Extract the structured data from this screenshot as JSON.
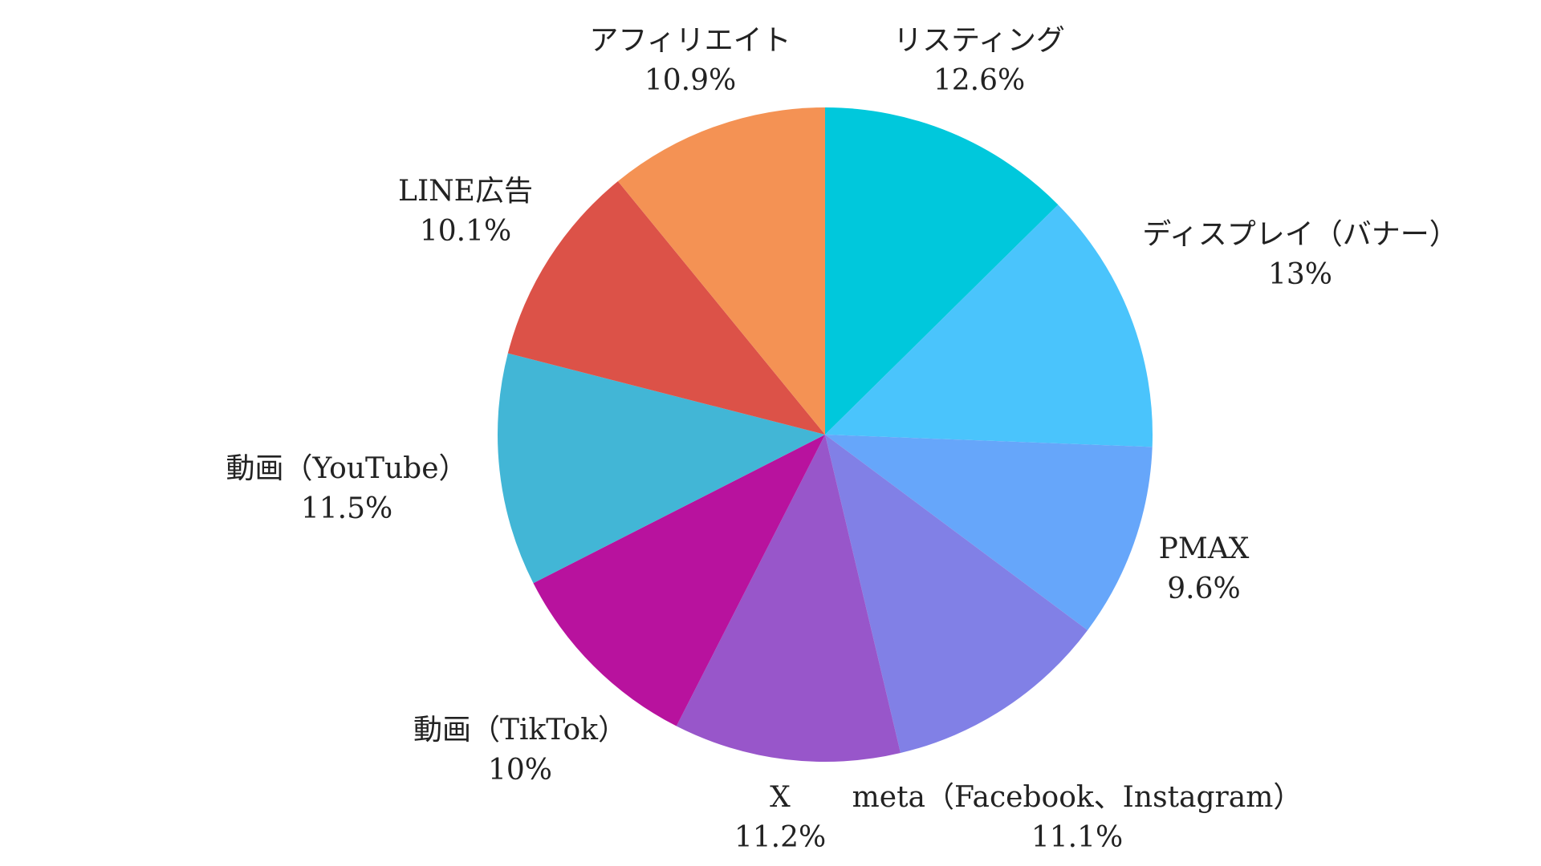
{
  "chart_data": {
    "type": "pie",
    "title": "",
    "slices": [
      {
        "label": "リスティング",
        "value": 12.6,
        "display": "12.6%",
        "color": "#00C8DC"
      },
      {
        "label": "ディスプレイ（バナー）",
        "value": 13,
        "display": "13%",
        "color": "#4AC4FC"
      },
      {
        "label": "PMAX",
        "value": 9.6,
        "display": "9.6%",
        "color": "#66A6FA"
      },
      {
        "label": "meta（Facebook、Instagram）",
        "value": 11.1,
        "display": "11.1%",
        "color": "#8180E6"
      },
      {
        "label": "X",
        "value": 11.2,
        "display": "11.2%",
        "color": "#9856CA"
      },
      {
        "label": "動画（TikTok）",
        "value": 10,
        "display": "10%",
        "color": "#B8129E"
      },
      {
        "label": "動画（YouTube）",
        "value": 11.5,
        "display": "11.5%",
        "color": "#42B6D6"
      },
      {
        "label": "LINE広告",
        "value": 10.1,
        "display": "10.1%",
        "color": "#DC5248"
      },
      {
        "label": "アフィリエイト",
        "value": 10.9,
        "display": "10.9%",
        "color": "#F49254"
      }
    ]
  }
}
